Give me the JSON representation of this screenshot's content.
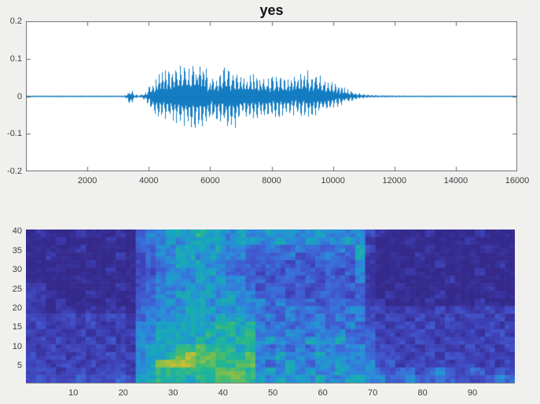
{
  "figure": {
    "background": "#f0f0ee",
    "plot_background": "#ffffff",
    "axis_color": "#6e6e6e",
    "tick_label_color": "#3d3d3d",
    "title_color": "#111111"
  },
  "chart_data": [
    {
      "type": "line",
      "name": "audio-waveform",
      "title": "yes",
      "line_color": "#0072bd",
      "xlim": [
        0,
        16000
      ],
      "ylim": [
        -0.2,
        0.2
      ],
      "x_tick_values": [
        2000,
        4000,
        6000,
        8000,
        10000,
        12000,
        14000,
        16000
      ],
      "x_tick_labels": [
        "2000",
        "4000",
        "6000",
        "8000",
        "10000",
        "12000",
        "14000",
        "16000"
      ],
      "y_tick_values": [
        0.2,
        0.1,
        0,
        -0.1,
        -0.2
      ],
      "y_tick_labels": [
        "0.2",
        "0.1",
        "0",
        "-0.1",
        "-0.2"
      ],
      "grid": "off",
      "envelope_sample_pos_neg": [
        [
          0,
          0.002,
          0.002
        ],
        [
          3200,
          0.002,
          0.002
        ],
        [
          3330,
          0.012,
          0.018
        ],
        [
          3420,
          0.02,
          0.025
        ],
        [
          3520,
          0.006,
          0.006
        ],
        [
          3700,
          0.003,
          0.003
        ],
        [
          3900,
          0.012,
          0.012
        ],
        [
          4050,
          0.035,
          0.04
        ],
        [
          4250,
          0.055,
          0.06
        ],
        [
          4500,
          0.07,
          0.065
        ],
        [
          4750,
          0.085,
          0.075
        ],
        [
          5000,
          0.09,
          0.08
        ],
        [
          5250,
          0.095,
          0.085
        ],
        [
          5500,
          0.1,
          0.09
        ],
        [
          5750,
          0.09,
          0.085
        ],
        [
          6000,
          0.06,
          0.07
        ],
        [
          6250,
          0.055,
          0.065
        ],
        [
          6500,
          0.09,
          0.08
        ],
        [
          6700,
          0.07,
          0.11
        ],
        [
          6900,
          0.06,
          0.07
        ],
        [
          7100,
          0.055,
          0.06
        ],
        [
          7400,
          0.06,
          0.065
        ],
        [
          7700,
          0.055,
          0.06
        ],
        [
          8000,
          0.06,
          0.055
        ],
        [
          8300,
          0.055,
          0.06
        ],
        [
          8600,
          0.05,
          0.05
        ],
        [
          8900,
          0.065,
          0.055
        ],
        [
          9200,
          0.075,
          0.06
        ],
        [
          9500,
          0.06,
          0.05
        ],
        [
          9800,
          0.045,
          0.04
        ],
        [
          10100,
          0.035,
          0.03
        ],
        [
          10400,
          0.025,
          0.02
        ],
        [
          10700,
          0.012,
          0.01
        ],
        [
          11000,
          0.006,
          0.005
        ],
        [
          11500,
          0.003,
          0.003
        ],
        [
          12500,
          0.002,
          0.002
        ],
        [
          16000,
          0.0015,
          0.0015
        ]
      ]
    },
    {
      "type": "heatmap",
      "name": "spectrogram",
      "xlim": [
        1,
        98
      ],
      "ylim": [
        1,
        40
      ],
      "x_tick_values": [
        10,
        20,
        30,
        40,
        50,
        60,
        70,
        80,
        90
      ],
      "x_tick_labels": [
        "10",
        "20",
        "30",
        "40",
        "50",
        "60",
        "70",
        "80",
        "90"
      ],
      "y_tick_values": [
        5,
        10,
        15,
        20,
        25,
        30,
        35,
        40
      ],
      "y_tick_labels": [
        "5",
        "10",
        "15",
        "20",
        "25",
        "30",
        "35",
        "40"
      ],
      "n_cols": 98,
      "n_rows": 40,
      "colormap_stops": [
        "#352a8c",
        "#3b38a8",
        "#4149c0",
        "#3f62d4",
        "#2e86dc",
        "#18a5c2",
        "#21b694",
        "#5cbd5f",
        "#a5bf3d",
        "#e0be30"
      ],
      "grid_rows_top_to_bottom": [
        "0100010001034455565545445454454444210000100001000",
        "0001000010034454555545544544544454100010000010000",
        "0000010000033445554544334334333435200000100000100",
        "0010000001023445545444333342334335100001000000000",
        "0000001000023345554433333323233324100000010000010",
        "0000000010022344455433323233323234100010000001000",
        "0000010000023454454544332332323324100000001000000",
        "1100000001023444545444323323223333100100000000100",
        "2110001000033445555454433323233323101000010000010",
        "1101000010033454554554443433323333110000100001000",
        "1101101011034444555445443343433344221121121211212",
        "2212212122134445554555434343343434212212112122121",
        "1211212112144555555665643433443343221221212212212",
        "2121121211244555556565644344344433312122121121221",
        "1212112121144555565656645444544543321212212212122",
        "2121221212145556676665643434344344322121221121212",
        "2122121221245567877766744544454444332212212212121",
        "2212212122145888877667743454344544423122121221212",
        "2221221222145666666777645454544544432332343233232",
        "2322232223255666566777654545454455443343343222343"
      ]
    }
  ]
}
